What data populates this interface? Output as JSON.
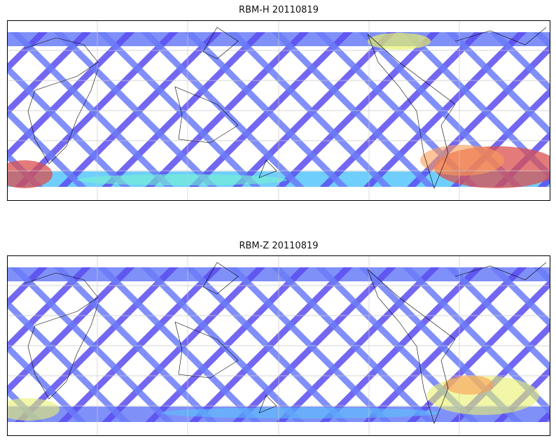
{
  "panels": [
    {
      "id": "top",
      "title": "RBM-H 20110819"
    },
    {
      "id": "bottom",
      "title": "RBM-Z 20110819"
    }
  ],
  "colormap": [
    "#5a4cf0",
    "#6a7cf8",
    "#57c6fb",
    "#74f3cf",
    "#e8f26a",
    "#fb9c55",
    "#d94f4f"
  ],
  "colors": {
    "frame": "#000000",
    "grid": "#c8c8c8",
    "coast": "#000000"
  }
}
